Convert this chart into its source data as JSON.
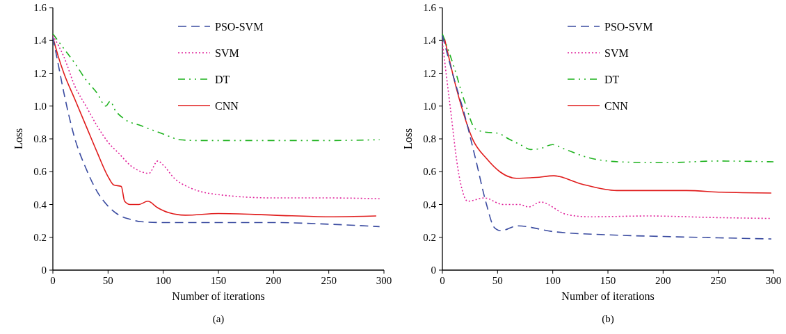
{
  "chart_data": [
    {
      "type": "line",
      "xlabel": "Number of iterations",
      "ylabel": "Loss",
      "xlim": [
        0,
        300
      ],
      "xticks": [
        0,
        50,
        100,
        150,
        200,
        250,
        300
      ],
      "ylim": [
        0,
        1.6
      ],
      "yticks": [
        {
          "value": 0,
          "label": "0"
        },
        {
          "value": 0.2,
          "label": "0.2"
        },
        {
          "value": 0.4,
          "label": "0.4"
        },
        {
          "value": 0.6,
          "label": "0.6"
        },
        {
          "value": 0.8,
          "label": "0.8"
        },
        {
          "value": 1.0,
          "label": "1.0"
        },
        {
          "value": 1.2,
          "label": "1.2"
        },
        {
          "value": 1.4,
          "label": "1.4"
        },
        {
          "value": 1.6,
          "label": "1.6"
        }
      ],
      "grid": false,
      "legend": "top right",
      "marker": "none",
      "annotations": [
        "(a)"
      ],
      "series": [
        {
          "name": "PSO-SVM",
          "color": "#3a4ba0",
          "line_style": "dashed",
          "x": [
            0,
            5,
            10,
            20,
            30,
            40,
            50,
            60,
            70,
            80,
            100,
            150,
            200,
            250,
            296
          ],
          "values": [
            1.42,
            1.25,
            1.08,
            0.8,
            0.62,
            0.48,
            0.39,
            0.335,
            0.31,
            0.295,
            0.29,
            0.29,
            0.29,
            0.28,
            0.265
          ]
        },
        {
          "name": "SVM",
          "color": "#e0209a",
          "line_style": "dotted",
          "x": [
            0,
            10,
            20,
            30,
            40,
            50,
            60,
            70,
            80,
            87,
            95,
            100,
            110,
            125,
            150,
            200,
            250,
            296
          ],
          "values": [
            1.43,
            1.3,
            1.12,
            1.0,
            0.88,
            0.78,
            0.71,
            0.64,
            0.6,
            0.59,
            0.665,
            0.64,
            0.56,
            0.5,
            0.46,
            0.44,
            0.44,
            0.435
          ]
        },
        {
          "name": "DT",
          "color": "#1db21d",
          "line_style": "dashdotdot",
          "x": [
            0,
            10,
            20,
            30,
            40,
            48,
            52,
            56,
            65,
            80,
            100,
            115,
            130,
            200,
            250,
            296
          ],
          "values": [
            1.44,
            1.35,
            1.26,
            1.16,
            1.08,
            1.0,
            1.03,
            0.98,
            0.92,
            0.88,
            0.83,
            0.795,
            0.79,
            0.79,
            0.79,
            0.795
          ]
        },
        {
          "name": "CNN",
          "color": "#e01b1b",
          "line_style": "solid",
          "x": [
            0,
            5,
            10,
            20,
            30,
            40,
            50,
            55,
            62,
            65,
            70,
            78,
            86,
            95,
            105,
            120,
            150,
            200,
            250,
            293
          ],
          "values": [
            1.42,
            1.3,
            1.2,
            1.04,
            0.88,
            0.72,
            0.57,
            0.52,
            0.51,
            0.42,
            0.4,
            0.4,
            0.42,
            0.38,
            0.35,
            0.335,
            0.345,
            0.335,
            0.325,
            0.33
          ]
        }
      ]
    },
    {
      "type": "line",
      "xlabel": "Number of iterations",
      "ylabel": "Loss",
      "xlim": [
        0,
        300
      ],
      "xticks": [
        0,
        50,
        100,
        150,
        200,
        250,
        300
      ],
      "ylim": [
        0,
        1.6
      ],
      "yticks": [
        {
          "value": 0,
          "label": "0"
        },
        {
          "value": 0.2,
          "label": "0.2"
        },
        {
          "value": 0.4,
          "label": "0.4"
        },
        {
          "value": 0.6,
          "label": "0.6"
        },
        {
          "value": 0.8,
          "label": "0.8"
        },
        {
          "value": 1.0,
          "label": "1.0"
        },
        {
          "value": 1.2,
          "label": "1.2"
        },
        {
          "value": 1.4,
          "label": "1.4"
        },
        {
          "value": 1.6,
          "label": "1.6"
        }
      ],
      "grid": false,
      "legend": "top right",
      "marker": "none",
      "annotations": [
        "(b)"
      ],
      "series": [
        {
          "name": "PSO-SVM",
          "color": "#3a4ba0",
          "line_style": "dashed",
          "x": [
            0,
            10,
            20,
            30,
            40,
            47,
            53,
            68,
            100,
            150,
            200,
            250,
            298
          ],
          "values": [
            1.43,
            1.18,
            0.95,
            0.68,
            0.4,
            0.26,
            0.24,
            0.27,
            0.235,
            0.215,
            0.205,
            0.197,
            0.19
          ]
        },
        {
          "name": "SVM",
          "color": "#e0209a",
          "line_style": "dotted",
          "x": [
            0,
            7,
            15,
            23,
            38,
            55,
            70,
            78,
            89,
            112,
            133,
            186,
            250,
            298
          ],
          "values": [
            1.39,
            1.0,
            0.58,
            0.42,
            0.44,
            0.4,
            0.4,
            0.385,
            0.415,
            0.34,
            0.325,
            0.33,
            0.32,
            0.315
          ]
        },
        {
          "name": "DT",
          "color": "#1db21d",
          "line_style": "dashdotdot",
          "x": [
            0,
            10,
            20,
            30,
            40,
            50,
            60,
            72,
            80,
            88,
            100,
            110,
            130,
            160,
            200,
            250,
            300
          ],
          "values": [
            1.44,
            1.25,
            1.03,
            0.86,
            0.84,
            0.835,
            0.8,
            0.76,
            0.735,
            0.74,
            0.765,
            0.74,
            0.69,
            0.66,
            0.655,
            0.665,
            0.66
          ]
        },
        {
          "name": "CNN",
          "color": "#e01b1b",
          "line_style": "solid",
          "x": [
            2,
            13,
            28,
            40,
            52,
            67,
            85,
            101,
            126,
            158,
            221,
            253,
            298
          ],
          "values": [
            1.41,
            1.1,
            0.79,
            0.68,
            0.6,
            0.56,
            0.565,
            0.575,
            0.525,
            0.485,
            0.485,
            0.475,
            0.47
          ]
        }
      ]
    }
  ]
}
